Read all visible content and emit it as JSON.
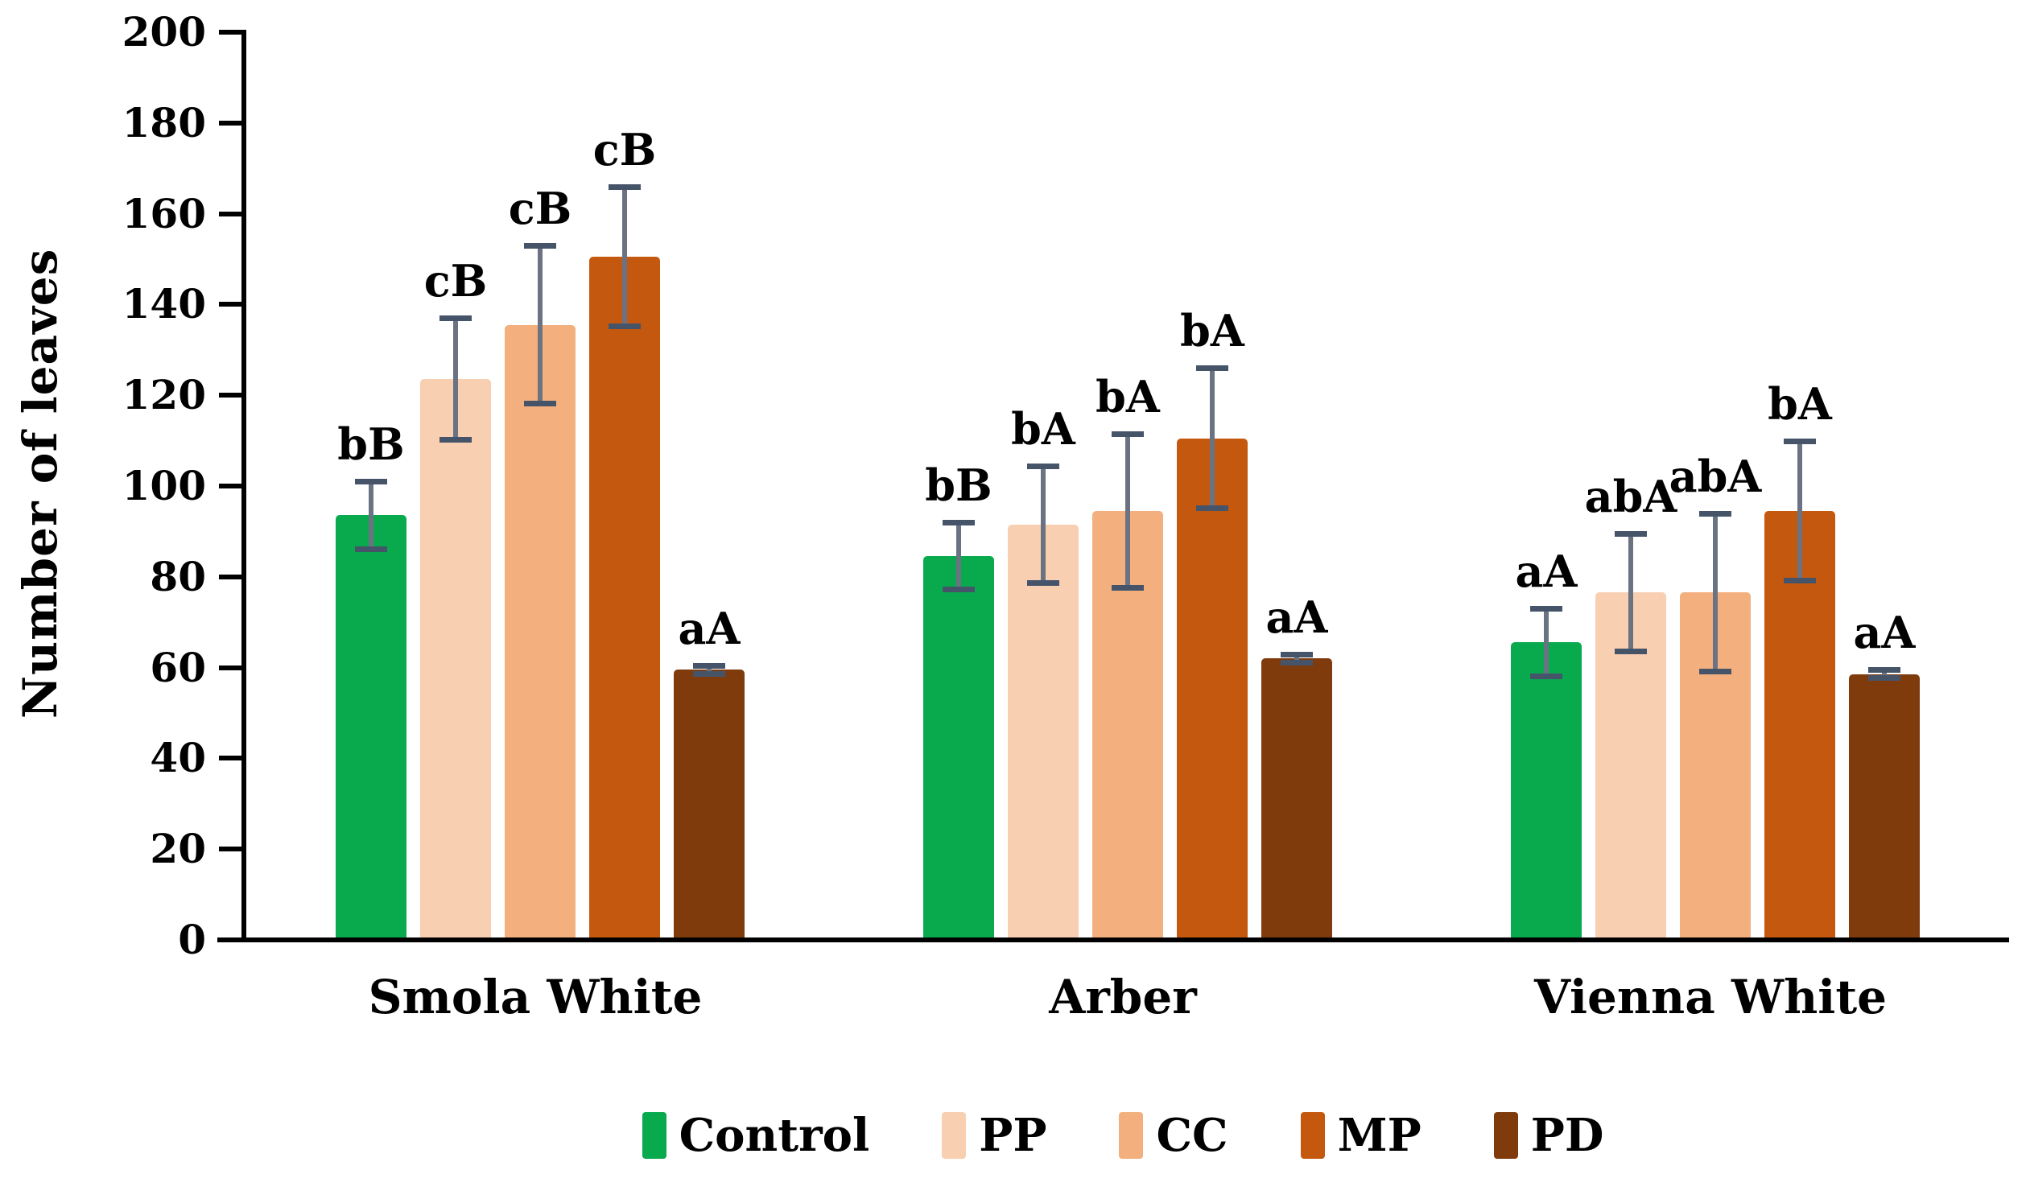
{
  "chart_data": {
    "type": "bar",
    "title": "",
    "ylabel": "Number of leaves",
    "xlabel": "",
    "ylim": [
      0,
      200
    ],
    "yticks": [
      0,
      20,
      40,
      60,
      80,
      100,
      120,
      140,
      160,
      180,
      200
    ],
    "grid": false,
    "legend_position": "bottom",
    "categories": [
      "Smola White",
      "Arber",
      "Vienna White"
    ],
    "series": [
      {
        "name": "Control",
        "color": "#09a94e",
        "values": [
          93,
          84,
          65
        ],
        "errors": [
          8,
          8,
          8
        ],
        "sig_labels": [
          "bB",
          "bB",
          "aA"
        ]
      },
      {
        "name": "PP",
        "color": "#f8cfb1",
        "values": [
          123,
          91,
          76
        ],
        "errors": [
          14,
          13.5,
          13.5
        ],
        "sig_labels": [
          "cB",
          "bA",
          "abA"
        ]
      },
      {
        "name": "CC",
        "color": "#f3b07e",
        "values": [
          135,
          94,
          76
        ],
        "errors": [
          18,
          17.5,
          18
        ],
        "sig_labels": [
          "cB",
          "bA",
          "abA"
        ]
      },
      {
        "name": "MP",
        "color": "#c5580f",
        "values": [
          150,
          110,
          94
        ],
        "errors": [
          16,
          16,
          16
        ],
        "sig_labels": [
          "cB",
          "bA",
          "bA"
        ]
      },
      {
        "name": "PD",
        "color": "#803b0c",
        "values": [
          59,
          61.5,
          58
        ],
        "errors": [
          1.5,
          1.5,
          1.5
        ],
        "sig_labels": [
          "aA",
          "aA",
          "aA"
        ]
      }
    ],
    "error_bar_shaft_color": "#6b7383",
    "error_bar_cap_color": "#46546a",
    "axis_color": "#000000"
  }
}
